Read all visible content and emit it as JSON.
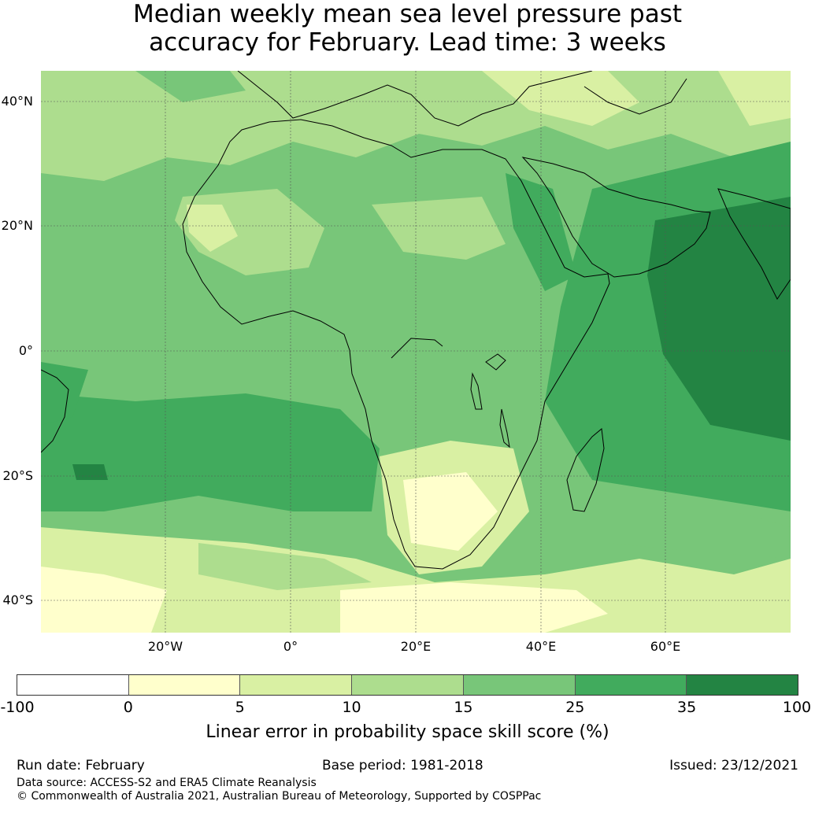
{
  "title": {
    "line1": "Median weekly mean sea level pressure past",
    "line2": "accuracy for February. Lead time: 3 weeks"
  },
  "map": {
    "lat_labels": [
      "40°N",
      "20°N",
      "0°",
      "20°S",
      "40°S"
    ],
    "lon_labels": [
      "20°W",
      "0°",
      "20°E",
      "40°E",
      "60°E"
    ],
    "colors": {
      "ocean_base": "#79c677",
      "level_0_5": "#ffffcc",
      "level_5_10": "#d9f0a3",
      "level_10_15": "#addd8e",
      "level_15_25": "#78c679",
      "level_25_35": "#41ab5d",
      "level_35_100": "#238443",
      "coastline": "#000000",
      "gridline": "#555555"
    }
  },
  "colorbar": {
    "ticks": [
      "-100",
      "0",
      "5",
      "10",
      "15",
      "25",
      "35",
      "100"
    ],
    "segment_colors": [
      "#ffffff",
      "#ffffcc",
      "#d9f0a3",
      "#addd8e",
      "#78c679",
      "#41ab5d",
      "#238443"
    ],
    "label": "Linear error in probability space skill score (%)"
  },
  "footer": {
    "run_date": "Run date: February",
    "base_period": "Base period: 1981-2018",
    "issued": "Issued: 23/12/2021",
    "data_source": "Data source: ACCESS-S2 and ERA5 Climate Reanalysis",
    "copyright": "© Commonwealth of Australia 2021, Australian Bureau of Meteorology, Supported by COSPPac"
  }
}
